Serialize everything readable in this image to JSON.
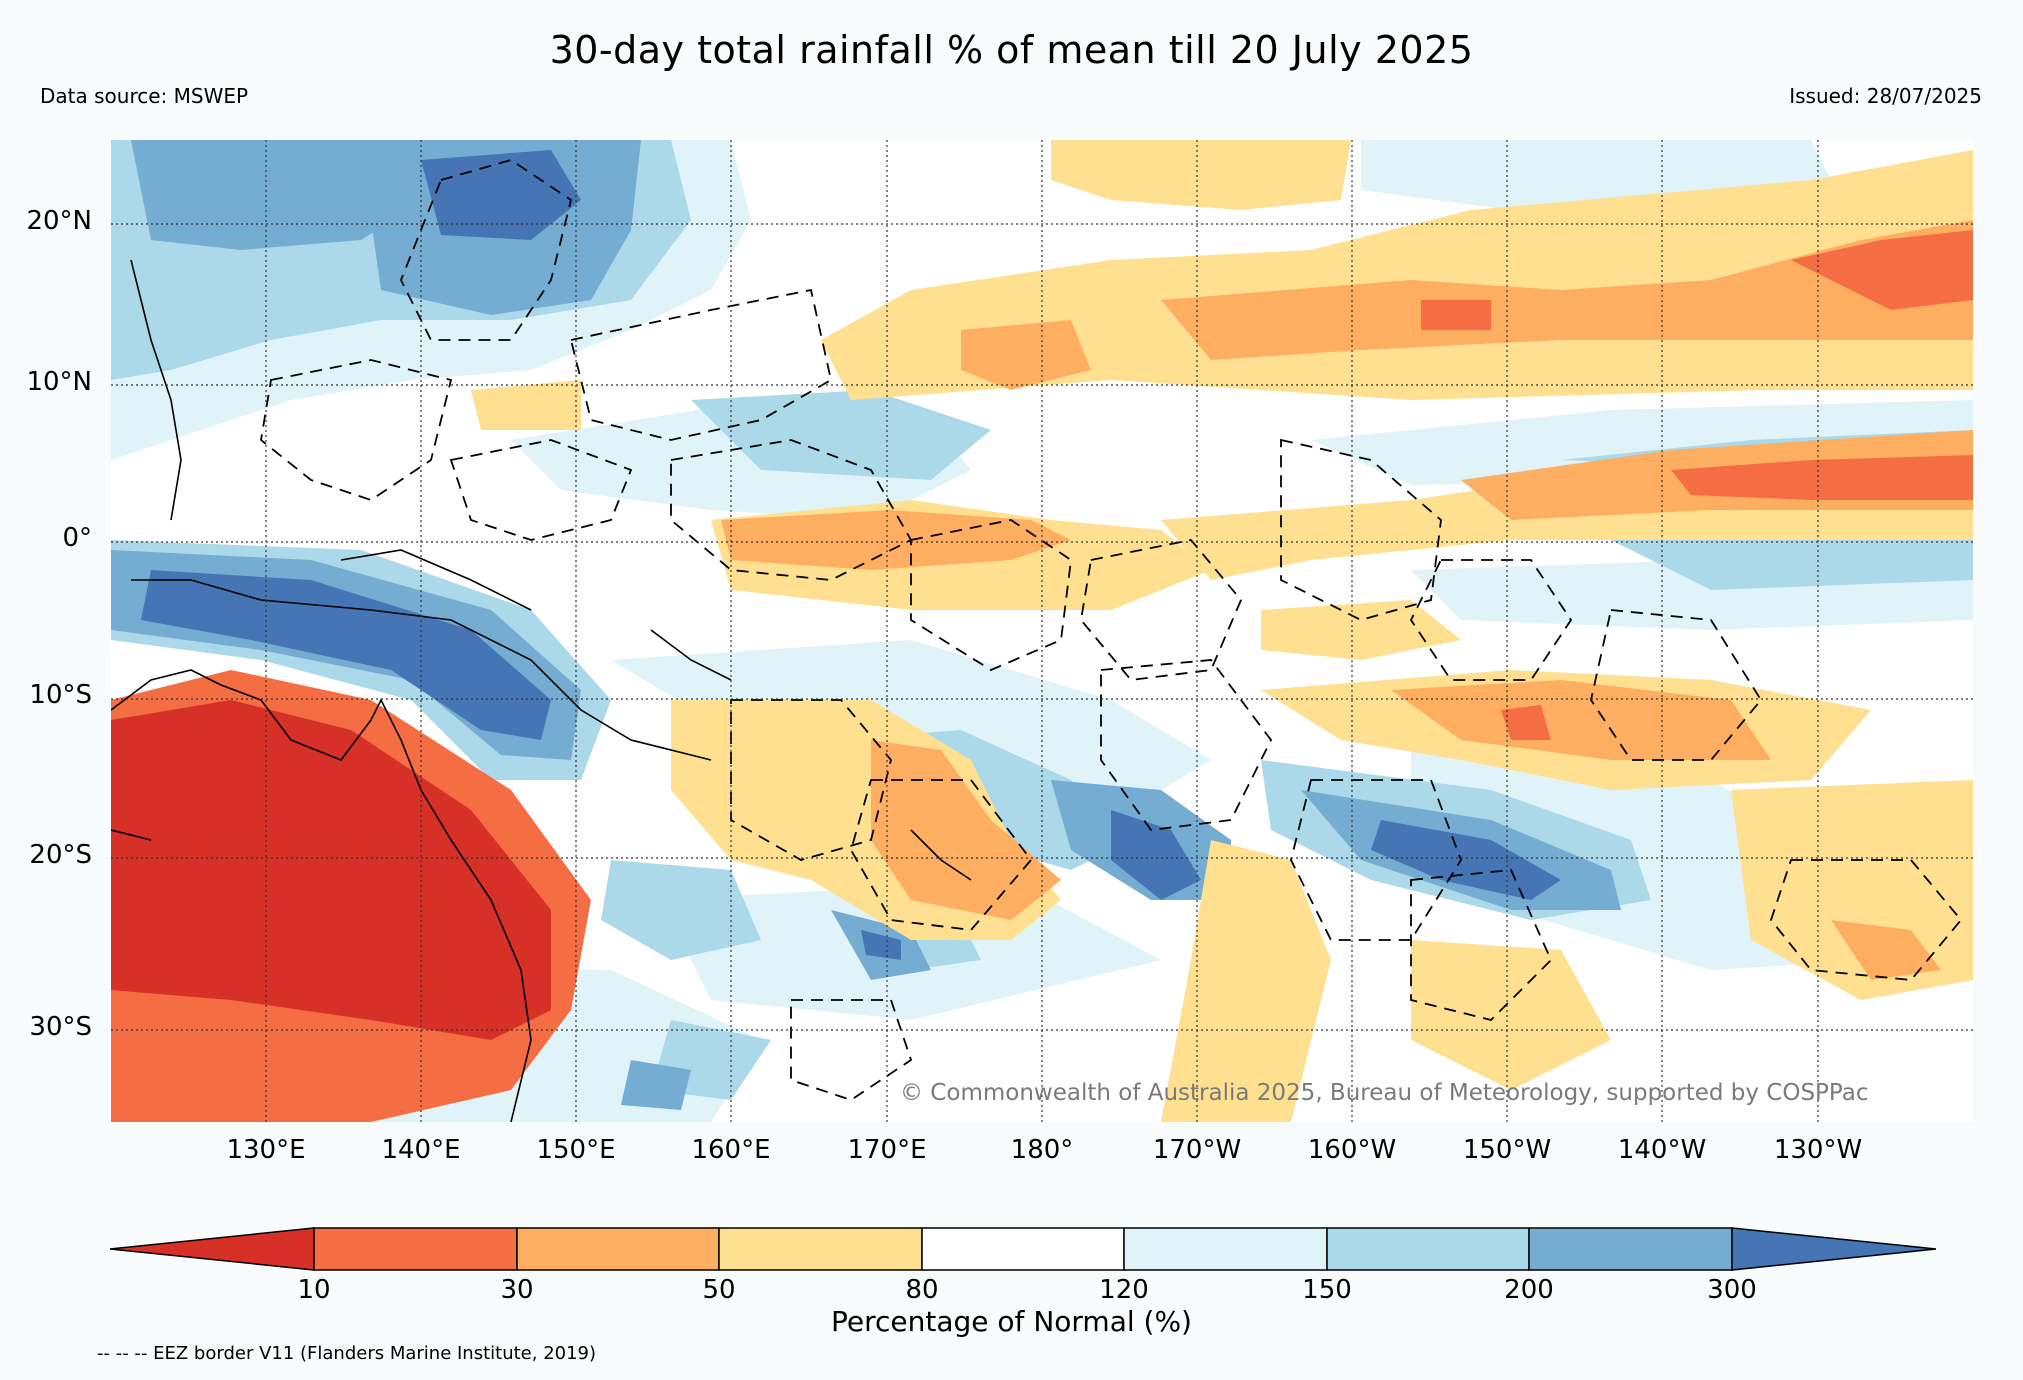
{
  "title": "30-day total rainfall % of mean till 20 July 2025",
  "data_source": "Data source: MSWEP",
  "issued": "Issued: 28/07/2025",
  "copyright": "© Commonwealth of Australia 2025, Bureau of Meteorology, supported by COSPPac",
  "eez_note": "-- -- -- EEZ border V11 (Flanders Marine Institute, 2019)",
  "map": {
    "lon_range": [
      120,
      240
    ],
    "lat_range": [
      -36,
      25
    ],
    "lat_labels": [
      {
        "lat": 20,
        "label": "20°N"
      },
      {
        "lat": 10,
        "label": "10°N"
      },
      {
        "lat": 0,
        "label": "0°"
      },
      {
        "lat": -10,
        "label": "10°S"
      },
      {
        "lat": -20,
        "label": "20°S"
      },
      {
        "lat": -30,
        "label": "30°S"
      }
    ],
    "lon_labels": [
      {
        "lon": 130,
        "label": "130°E"
      },
      {
        "lon": 140,
        "label": "140°E"
      },
      {
        "lon": 150,
        "label": "150°E"
      },
      {
        "lon": 160,
        "label": "160°E"
      },
      {
        "lon": 170,
        "label": "170°E"
      },
      {
        "lon": 180,
        "label": "180°"
      },
      {
        "lon": 190,
        "label": "170°W"
      },
      {
        "lon": 200,
        "label": "160°W"
      },
      {
        "lon": 210,
        "label": "150°W"
      },
      {
        "lon": 220,
        "label": "140°W"
      },
      {
        "lon": 230,
        "label": "130°W"
      }
    ]
  },
  "colorbar": {
    "label": "Percentage of Normal (%)",
    "ticks": [
      "10",
      "30",
      "50",
      "80",
      "120",
      "150",
      "200",
      "300"
    ],
    "colors": [
      "#d73027",
      "#f46d43",
      "#fdae61",
      "#fee090",
      "#ffffff",
      "#e0f3f8",
      "#abd9e9",
      "#74add1",
      "#4575b4"
    ]
  }
}
